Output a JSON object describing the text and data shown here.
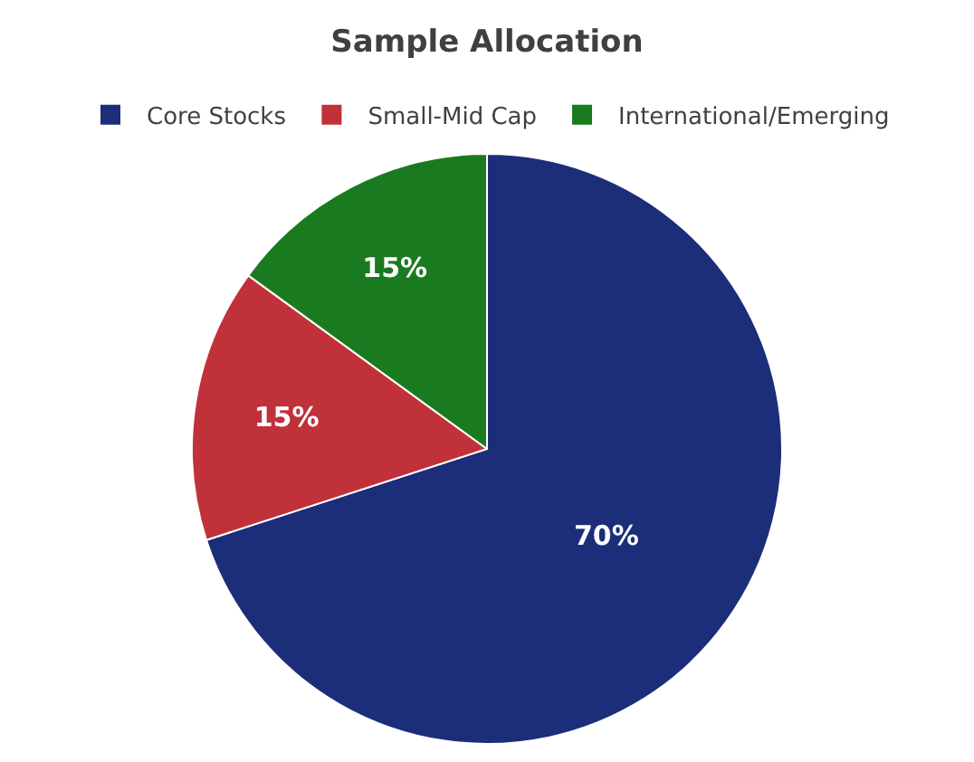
{
  "chart_data": {
    "type": "pie",
    "title": "Sample Allocation",
    "categories": [
      "Core Stocks",
      "Small-Mid Cap",
      "International/Emerging"
    ],
    "values": [
      70,
      15,
      15
    ],
    "colors": [
      "#1c2d7a",
      "#c0313a",
      "#1a7a1f"
    ],
    "value_labels": [
      "70%",
      "15%",
      "15%"
    ],
    "legend": "top"
  }
}
